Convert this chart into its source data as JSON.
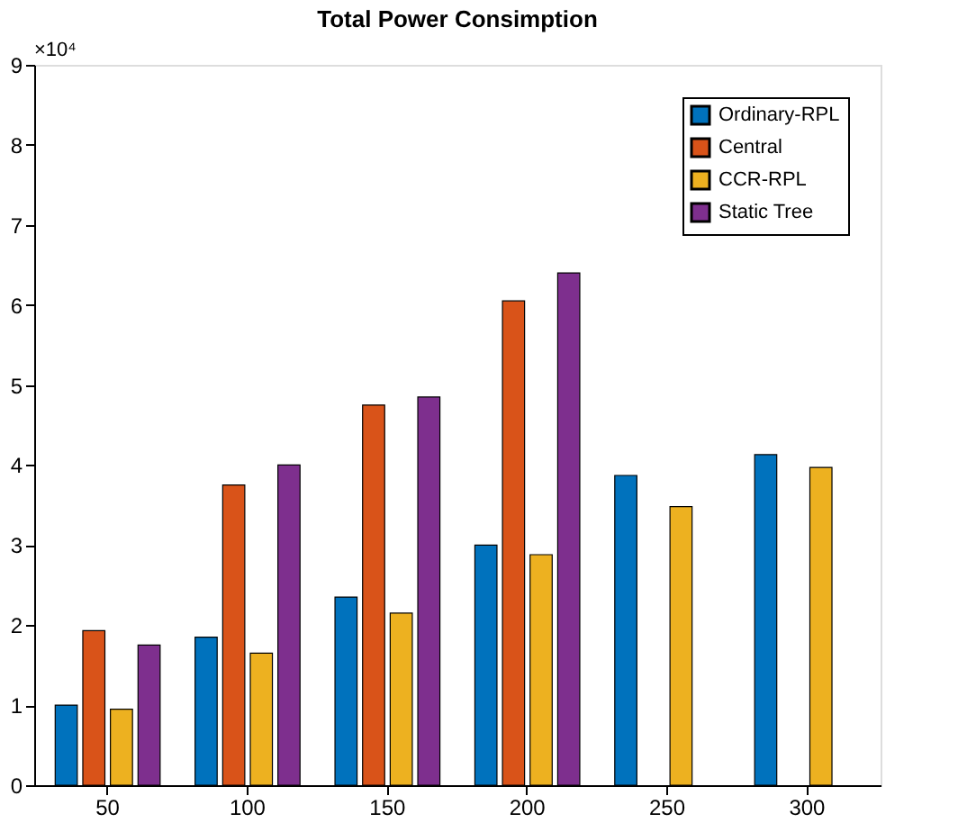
{
  "chart_data": {
    "type": "bar",
    "title": "Total Power Consimption",
    "categories": [
      "50",
      "100",
      "150",
      "200",
      "250",
      "300"
    ],
    "series": [
      {
        "name": "Ordinary-RPL",
        "color": "#0072bd",
        "values": [
          1.0,
          1.85,
          2.35,
          3.0,
          3.87,
          4.13
        ]
      },
      {
        "name": "Central",
        "color": "#d95319",
        "values": [
          1.93,
          3.75,
          4.75,
          6.05,
          null,
          null
        ]
      },
      {
        "name": "CCR-RPL",
        "color": "#edb120",
        "values": [
          0.95,
          1.65,
          2.15,
          2.88,
          3.48,
          3.97
        ]
      },
      {
        "name": "Static Tree",
        "color": "#7e2f8e",
        "values": [
          1.75,
          4.0,
          4.85,
          6.4,
          null,
          null
        ]
      }
    ],
    "ylim": [
      0,
      9
    ],
    "yticks": [
      0,
      1,
      2,
      3,
      4,
      5,
      6,
      7,
      8,
      9
    ],
    "annotations": [
      "×10⁴"
    ],
    "legend": "top right",
    "grid": false
  }
}
